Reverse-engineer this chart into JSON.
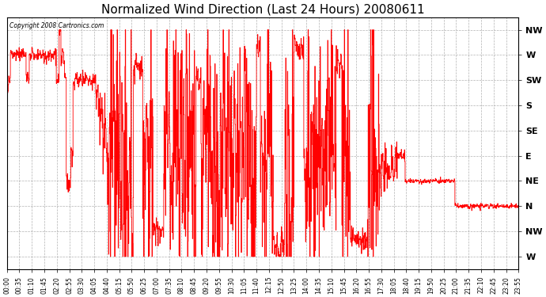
{
  "title": "Normalized Wind Direction (Last 24 Hours) 20080611",
  "copyright_text": "Copyright 2008 Cartronics.com",
  "line_color": "#ff0000",
  "background_color": "#ffffff",
  "grid_color": "#aaaaaa",
  "ytick_labels": [
    "NW",
    "W",
    "SW",
    "S",
    "SE",
    "E",
    "NE",
    "N",
    "NW",
    "W"
  ],
  "ytick_values": [
    9,
    8,
    7,
    6,
    5,
    4,
    3,
    2,
    1,
    0
  ],
  "ylim": [
    -0.5,
    9.5
  ],
  "title_fontsize": 11,
  "xtick_labels": [
    "00:00",
    "00:35",
    "01:10",
    "01:45",
    "02:20",
    "02:55",
    "03:30",
    "04:05",
    "04:40",
    "05:15",
    "05:50",
    "06:25",
    "07:00",
    "07:35",
    "08:10",
    "08:45",
    "09:20",
    "09:55",
    "10:30",
    "11:05",
    "11:40",
    "12:15",
    "12:50",
    "13:25",
    "14:00",
    "14:35",
    "15:10",
    "15:45",
    "16:20",
    "16:55",
    "17:30",
    "18:05",
    "18:40",
    "19:15",
    "19:50",
    "20:25",
    "21:00",
    "21:35",
    "22:10",
    "22:45",
    "23:20",
    "23:55"
  ],
  "n_points": 1440,
  "figsize": [
    6.9,
    3.75
  ],
  "dpi": 100
}
